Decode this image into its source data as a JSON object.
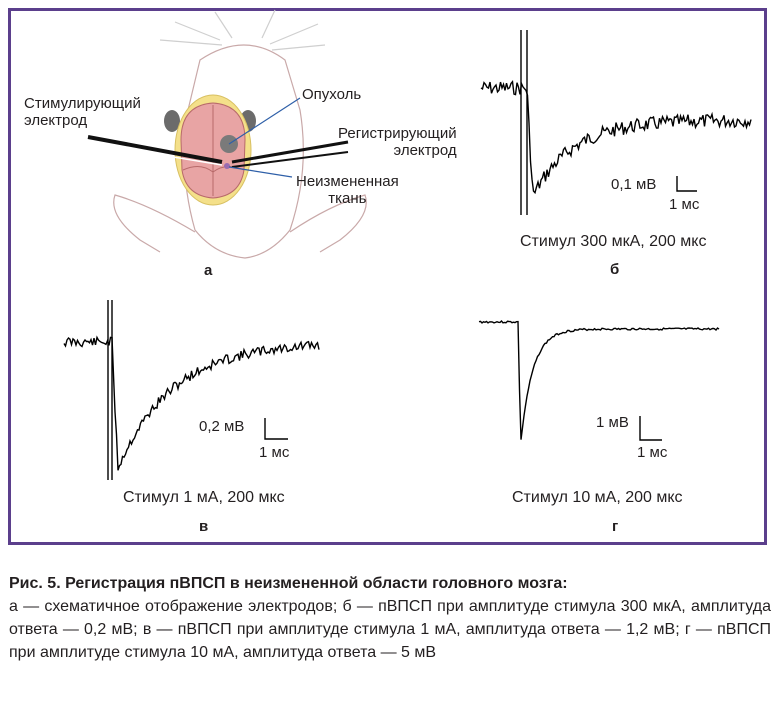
{
  "panel_a": {
    "letter": "а",
    "labels": {
      "stimulating_electrode": "Стимулирующий\nэлектрод",
      "tumor": "Опухоль",
      "recording_electrode": "Регистрирующий\nэлектрод",
      "unchanged_tissue": "Неизмененная\nткань"
    }
  },
  "panel_b": {
    "letter": "б",
    "stimulus": "Стимул 300 мкА, 200 мкс",
    "scale_y": "0,1 мВ",
    "scale_x": "1 мс"
  },
  "panel_v": {
    "letter": "в",
    "stimulus": "Стимул 1 мА, 200 мкс",
    "scale_y": "0,2 мВ",
    "scale_x": "1 мс"
  },
  "panel_g": {
    "letter": "г",
    "stimulus": "Стимул 10 мА, 200 мкс",
    "scale_y": "1 мВ",
    "scale_x": "1 мс"
  },
  "caption": {
    "title": "Рис. 5. Регистрация пВПСП в неизмененной области головного мозга:",
    "body": "а — схематичное отображение электродов; б — пВПСП при амплитуде стимула 300 мкА, амплитуда ответа — 0,2 мВ; в — пВПСП при амплитуде стимула 1 мА, амплитуда ответа — 1,2 мВ; г — пВПСП при амплитуде стимула 10 мА, амплитуда ответа — 5 мВ"
  },
  "colors": {
    "frame": "#5b3f8c",
    "brain": "#e8a4a4",
    "skull_ring": "#f4e08a",
    "tumor": "#7a7a7a",
    "pointer": "#2e5fa8"
  }
}
